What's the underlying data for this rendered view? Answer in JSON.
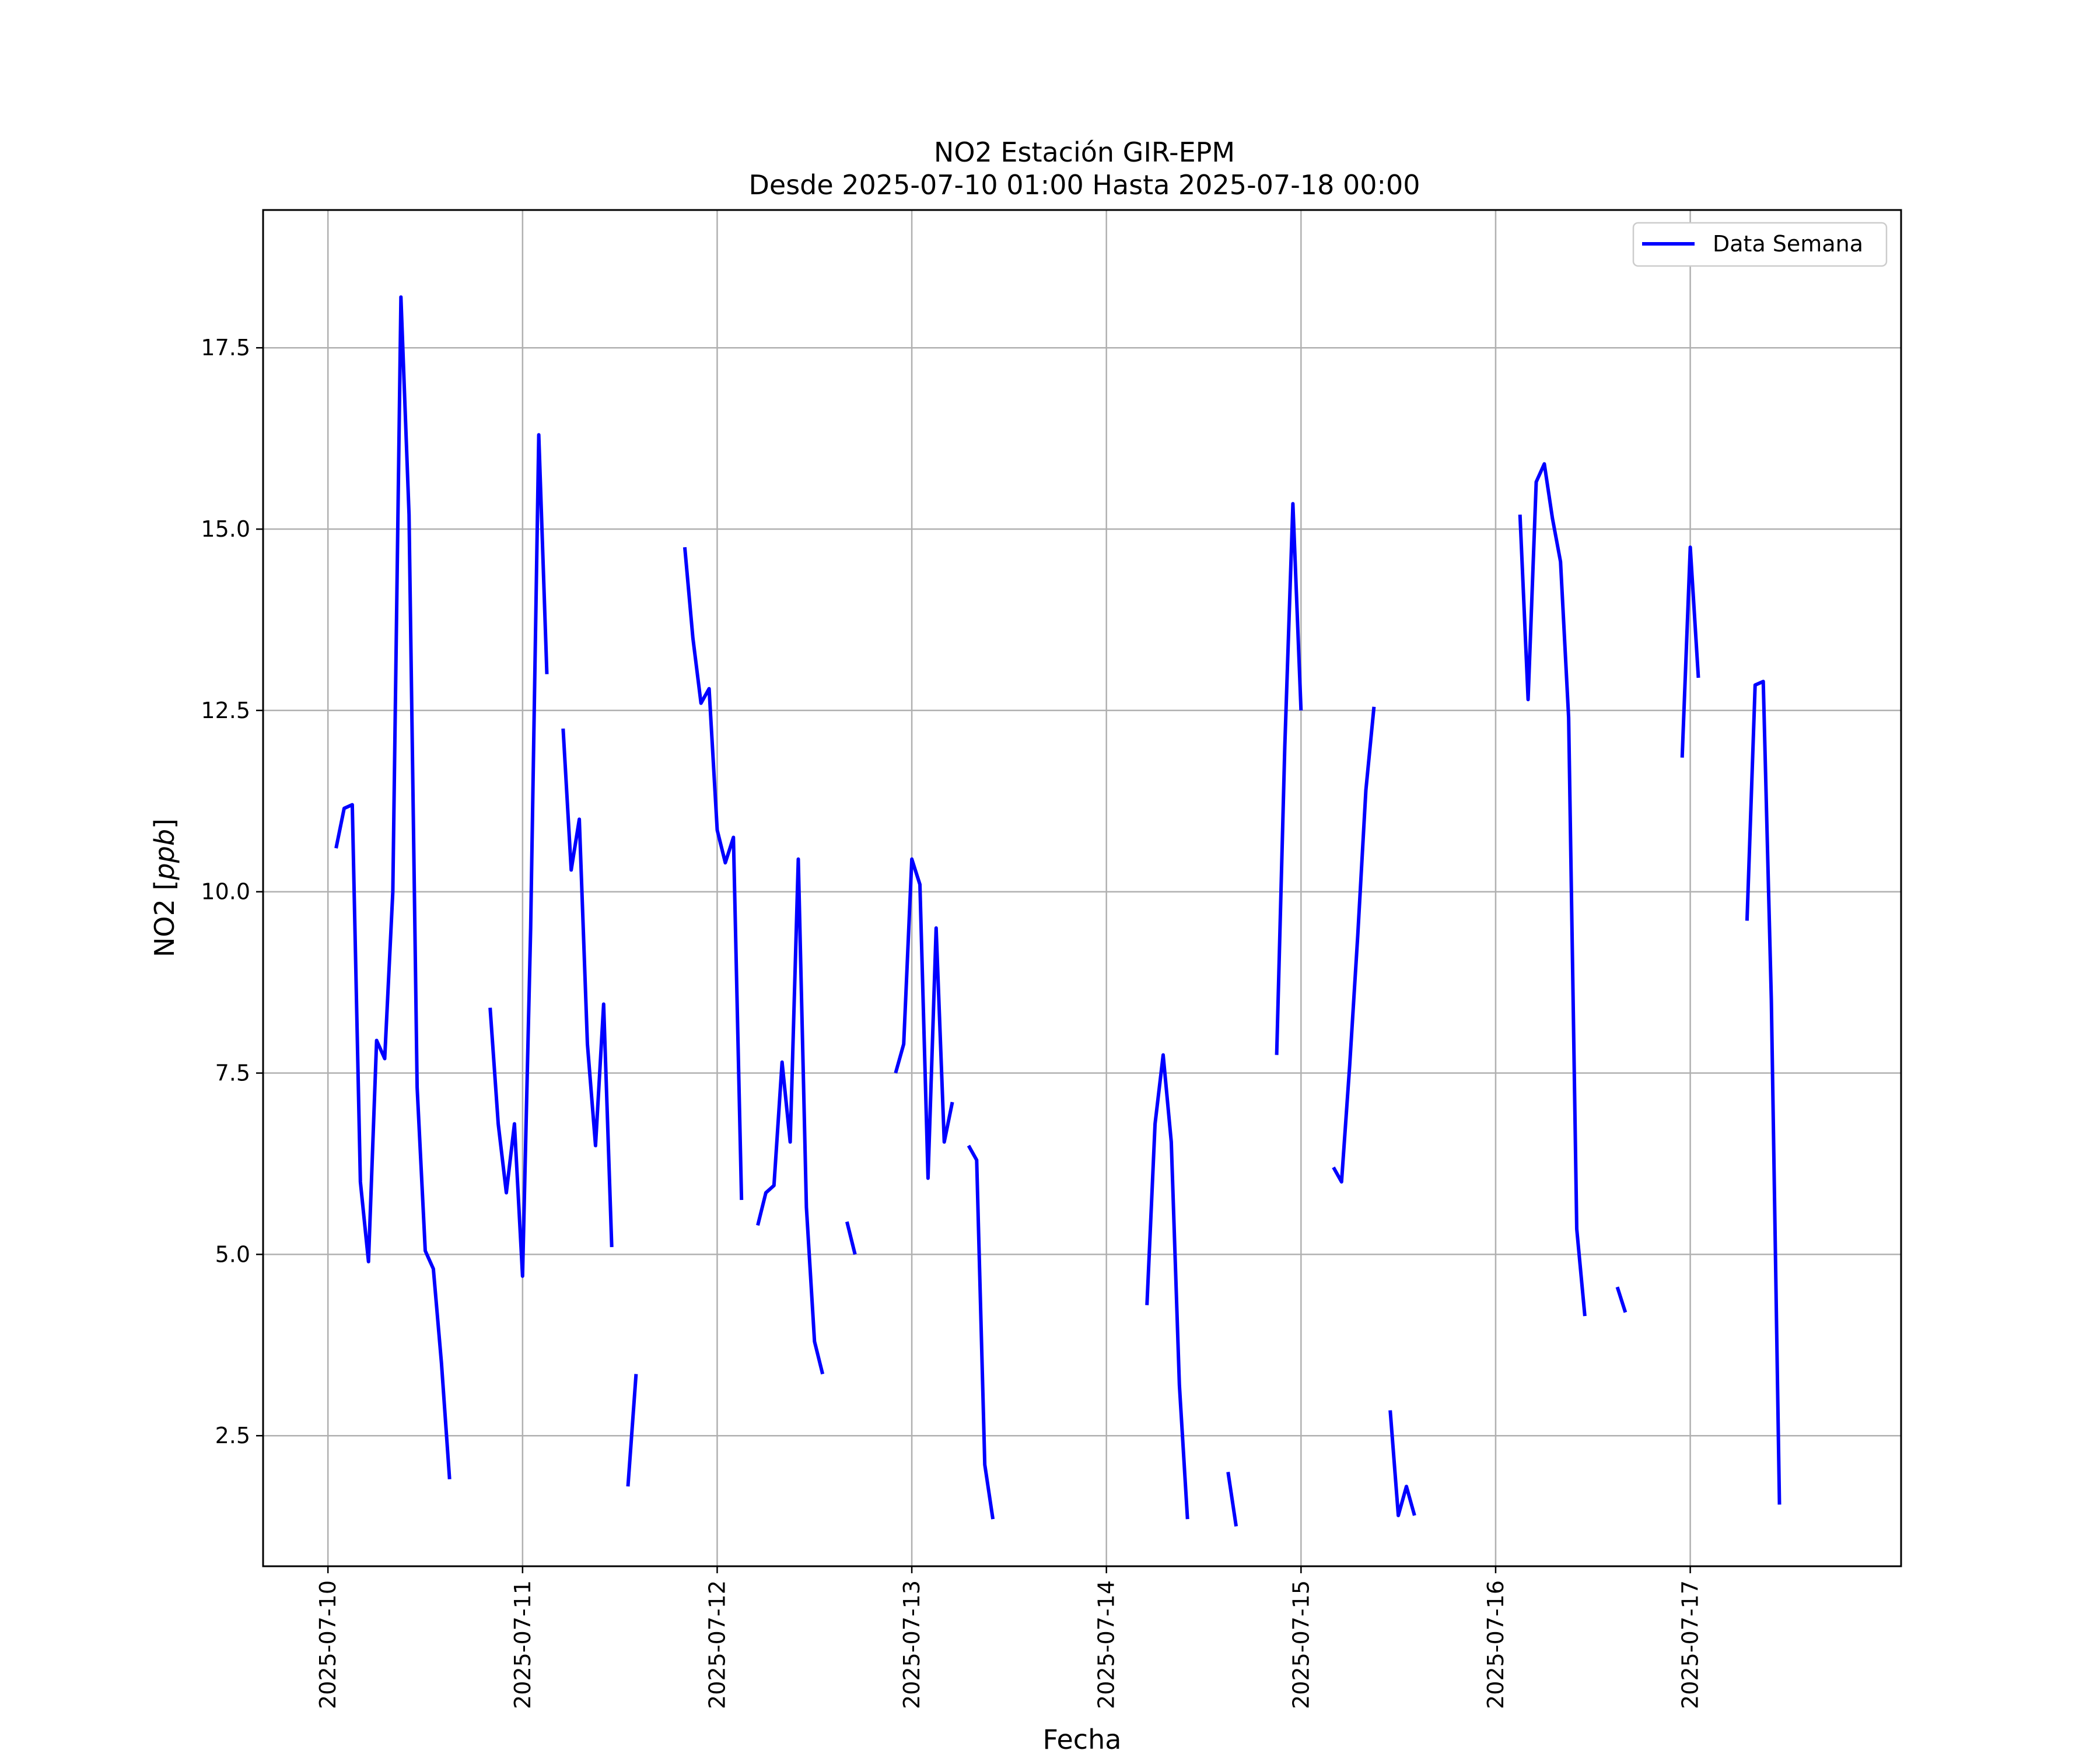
{
  "chart_data": {
    "type": "line",
    "title": "NO2 Estación GIR-EPM",
    "subtitle": "Desde 2025-07-10 01:00 Hasta 2025-07-18 00:00",
    "xlabel": "Fecha",
    "ylabel_text": "NO2 [",
    "ylabel_unit": "ppb",
    "ylabel_close": "]",
    "x_ticks": [
      "2025-07-10",
      "2025-07-11",
      "2025-07-12",
      "2025-07-13",
      "2025-07-14",
      "2025-07-15",
      "2025-07-16",
      "2025-07-17"
    ],
    "y_ticks": [
      "2.5",
      "5.0",
      "7.5",
      "10.0",
      "12.5",
      "15.0",
      "17.5"
    ],
    "y_tick_values": [
      2.5,
      5.0,
      7.5,
      10.0,
      12.5,
      15.0,
      17.5
    ],
    "xlim": [
      "2025-07-09 16:00",
      "2025-07-18 02:00"
    ],
    "ylim": [
      0.7,
      19.4
    ],
    "grid": true,
    "legend_position": "top-right",
    "line_color": "#0000ff",
    "series": [
      {
        "name": "Data Semana",
        "segments": [
          [
            [
              "2025-07-10 01:00",
              10.6
            ],
            [
              "2025-07-10 02:00",
              11.15
            ],
            [
              "2025-07-10 03:00",
              11.2
            ],
            [
              "2025-07-10 04:00",
              6.0
            ],
            [
              "2025-07-10 05:00",
              4.9
            ],
            [
              "2025-07-10 06:00",
              7.95
            ],
            [
              "2025-07-10 07:00",
              7.7
            ],
            [
              "2025-07-10 08:00",
              10.0
            ],
            [
              "2025-07-10 09:00",
              18.2
            ],
            [
              "2025-07-10 10:00",
              15.2
            ],
            [
              "2025-07-10 11:00",
              7.3
            ],
            [
              "2025-07-10 12:00",
              5.05
            ],
            [
              "2025-07-10 13:00",
              4.8
            ],
            [
              "2025-07-10 14:00",
              3.5
            ],
            [
              "2025-07-10 15:00",
              1.9
            ]
          ],
          [
            [
              "2025-07-10 20:00",
              8.4
            ],
            [
              "2025-07-10 21:00",
              6.8
            ],
            [
              "2025-07-10 22:00",
              5.85
            ],
            [
              "2025-07-10 23:00",
              6.8
            ],
            [
              "2025-07-11 00:00",
              4.7
            ],
            [
              "2025-07-11 01:00",
              9.5
            ],
            [
              "2025-07-11 02:00",
              16.3
            ],
            [
              "2025-07-11 03:00",
              13.0
            ]
          ],
          [
            [
              "2025-07-11 05:00",
              12.25
            ],
            [
              "2025-07-11 06:00",
              10.3
            ],
            [
              "2025-07-11 07:00",
              11.0
            ],
            [
              "2025-07-11 08:00",
              7.9
            ],
            [
              "2025-07-11 09:00",
              6.5
            ],
            [
              "2025-07-11 10:00",
              8.45
            ],
            [
              "2025-07-11 11:00",
              5.1
            ]
          ],
          [
            [
              "2025-07-11 13:00",
              1.8
            ],
            [
              "2025-07-11 14:00",
              3.35
            ]
          ],
          [
            [
              "2025-07-11 20:00",
              14.75
            ],
            [
              "2025-07-11 21:00",
              13.5
            ],
            [
              "2025-07-11 22:00",
              12.6
            ],
            [
              "2025-07-11 23:00",
              12.8
            ],
            [
              "2025-07-12 00:00",
              10.85
            ],
            [
              "2025-07-12 01:00",
              10.4
            ],
            [
              "2025-07-12 02:00",
              10.75
            ],
            [
              "2025-07-12 03:00",
              5.75
            ]
          ],
          [
            [
              "2025-07-12 05:00",
              5.4
            ],
            [
              "2025-07-12 06:00",
              5.85
            ],
            [
              "2025-07-12 07:00",
              5.95
            ],
            [
              "2025-07-12 08:00",
              7.65
            ],
            [
              "2025-07-12 09:00",
              6.55
            ],
            [
              "2025-07-12 10:00",
              10.45
            ],
            [
              "2025-07-12 11:00",
              5.65
            ],
            [
              "2025-07-12 12:00",
              3.8
            ],
            [
              "2025-07-12 13:00",
              3.35
            ]
          ],
          [
            [
              "2025-07-12 16:00",
              5.45
            ],
            [
              "2025-07-12 17:00",
              5.0
            ]
          ],
          [
            [
              "2025-07-12 22:00",
              7.5
            ],
            [
              "2025-07-12 23:00",
              7.9
            ],
            [
              "2025-07-13 00:00",
              10.45
            ],
            [
              "2025-07-13 01:00",
              10.1
            ],
            [
              "2025-07-13 02:00",
              6.05
            ],
            [
              "2025-07-13 03:00",
              9.5
            ],
            [
              "2025-07-13 04:00",
              6.55
            ],
            [
              "2025-07-13 05:00",
              7.1
            ]
          ],
          [
            [
              "2025-07-13 07:00",
              6.5
            ],
            [
              "2025-07-13 08:00",
              6.3
            ],
            [
              "2025-07-13 09:00",
              2.1
            ],
            [
              "2025-07-13 10:00",
              1.35
            ]
          ],
          [
            [
              "2025-07-14 05:00",
              4.3
            ],
            [
              "2025-07-14 06:00",
              6.8
            ],
            [
              "2025-07-14 07:00",
              7.75
            ],
            [
              "2025-07-14 08:00",
              6.55
            ],
            [
              "2025-07-14 09:00",
              3.2
            ],
            [
              "2025-07-14 10:00",
              1.35
            ]
          ],
          [
            [
              "2025-07-14 15:00",
              2.0
            ],
            [
              "2025-07-14 16:00",
              1.25
            ]
          ],
          [
            [
              "2025-07-14 21:00",
              7.75
            ],
            [
              "2025-07-14 22:00",
              12.0
            ],
            [
              "2025-07-14 23:00",
              15.35
            ],
            [
              "2025-07-15 00:00",
              12.5
            ]
          ],
          [
            [
              "2025-07-15 04:00",
              6.2
            ],
            [
              "2025-07-15 05:00",
              6.0
            ],
            [
              "2025-07-15 06:00",
              7.6
            ],
            [
              "2025-07-15 07:00",
              9.4
            ],
            [
              "2025-07-15 08:00",
              11.4
            ],
            [
              "2025-07-15 09:00",
              12.55
            ]
          ],
          [
            [
              "2025-07-15 11:00",
              2.85
            ],
            [
              "2025-07-15 12:00",
              1.4
            ],
            [
              "2025-07-15 13:00",
              1.8
            ],
            [
              "2025-07-15 14:00",
              1.4
            ]
          ],
          [
            [
              "2025-07-16 03:00",
              15.2
            ],
            [
              "2025-07-16 04:00",
              12.65
            ],
            [
              "2025-07-16 05:00",
              15.65
            ],
            [
              "2025-07-16 06:00",
              15.9
            ],
            [
              "2025-07-16 07:00",
              15.15
            ],
            [
              "2025-07-16 08:00",
              14.55
            ],
            [
              "2025-07-16 09:00",
              12.4
            ],
            [
              "2025-07-16 10:00",
              5.35
            ],
            [
              "2025-07-16 11:00",
              4.15
            ]
          ],
          [
            [
              "2025-07-16 15:00",
              4.55
            ],
            [
              "2025-07-16 16:00",
              4.2
            ]
          ],
          [
            [
              "2025-07-16 23:00",
              11.85
            ],
            [
              "2025-07-17 00:00",
              14.75
            ],
            [
              "2025-07-17 01:00",
              12.95
            ]
          ],
          [
            [
              "2025-07-17 07:00",
              9.6
            ],
            [
              "2025-07-17 08:00",
              12.85
            ],
            [
              "2025-07-17 09:00",
              12.9
            ],
            [
              "2025-07-17 10:00",
              8.5
            ],
            [
              "2025-07-17 11:00",
              1.55
            ]
          ]
        ]
      }
    ]
  }
}
